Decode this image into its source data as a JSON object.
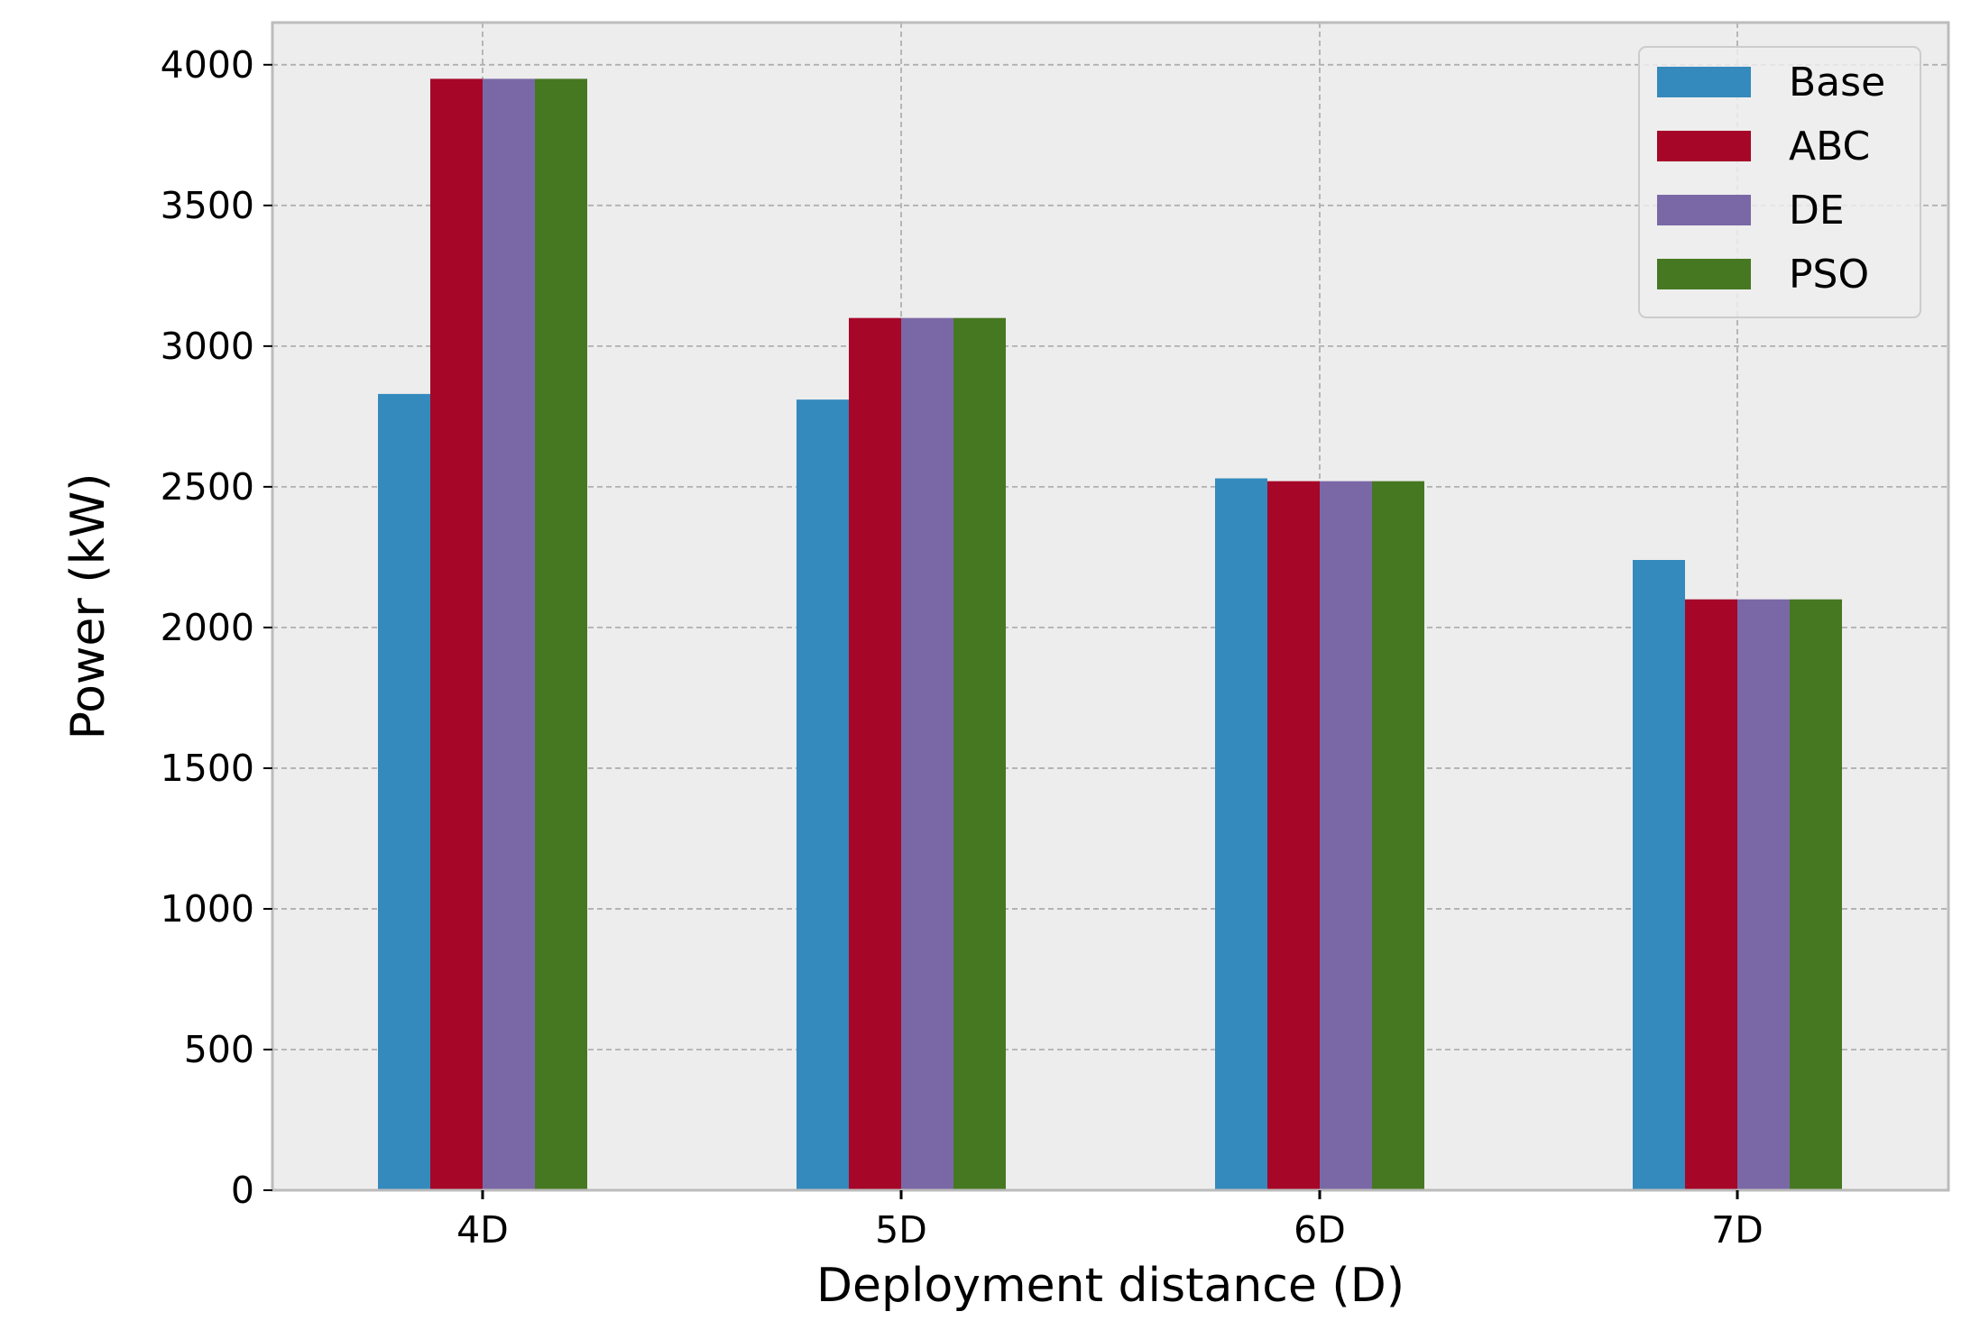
{
  "chart_data": {
    "type": "bar",
    "title": "",
    "xlabel": "Deployment distance (D)",
    "ylabel": "Power (kW)",
    "categories": [
      "4D",
      "5D",
      "6D",
      "7D"
    ],
    "ylim": [
      0,
      4150
    ],
    "yticks": [
      0,
      500,
      1000,
      1500,
      2000,
      2500,
      3000,
      3500,
      4000
    ],
    "ytick_labels": [
      "0",
      "500",
      "1000",
      "1500",
      "2000",
      "2500",
      "3000",
      "3500",
      "4000"
    ],
    "grid": true,
    "legend_position": "top-right",
    "series": [
      {
        "name": "Base",
        "color": "#348ABD",
        "values": [
          2830,
          2810,
          2530,
          2240
        ]
      },
      {
        "name": "ABC",
        "color": "#A60628",
        "values": [
          3950,
          3100,
          2520,
          2100
        ]
      },
      {
        "name": "DE",
        "color": "#7A68A6",
        "values": [
          3950,
          3100,
          2520,
          2100
        ]
      },
      {
        "name": "PSO",
        "color": "#467821",
        "values": [
          3950,
          3100,
          2520,
          2100
        ]
      }
    ],
    "colors": {
      "plot_background": "#EDEDED",
      "grid": "#B0B0B0",
      "axes_edge": "#BCBCBC"
    }
  }
}
